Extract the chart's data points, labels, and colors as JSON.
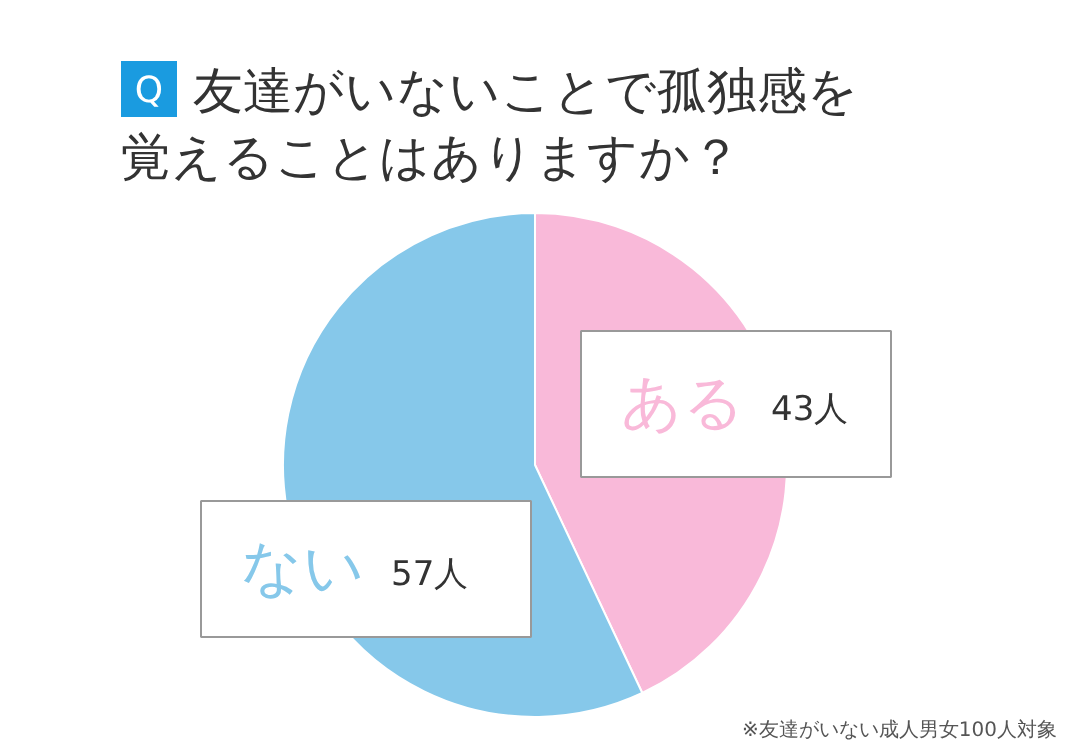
{
  "chart_data": {
    "type": "pie",
    "title": "友達がいないことで孤独感を覚えることはありますか？",
    "annotations": [
      "Q",
      "※友達がいない成人男女100人対象"
    ],
    "categories": [
      "ある",
      "ない"
    ],
    "values": [
      43,
      57
    ],
    "value_labels": [
      "43人",
      "57人"
    ],
    "colors": [
      "#f9b9d9",
      "#86c8ea"
    ]
  }
}
